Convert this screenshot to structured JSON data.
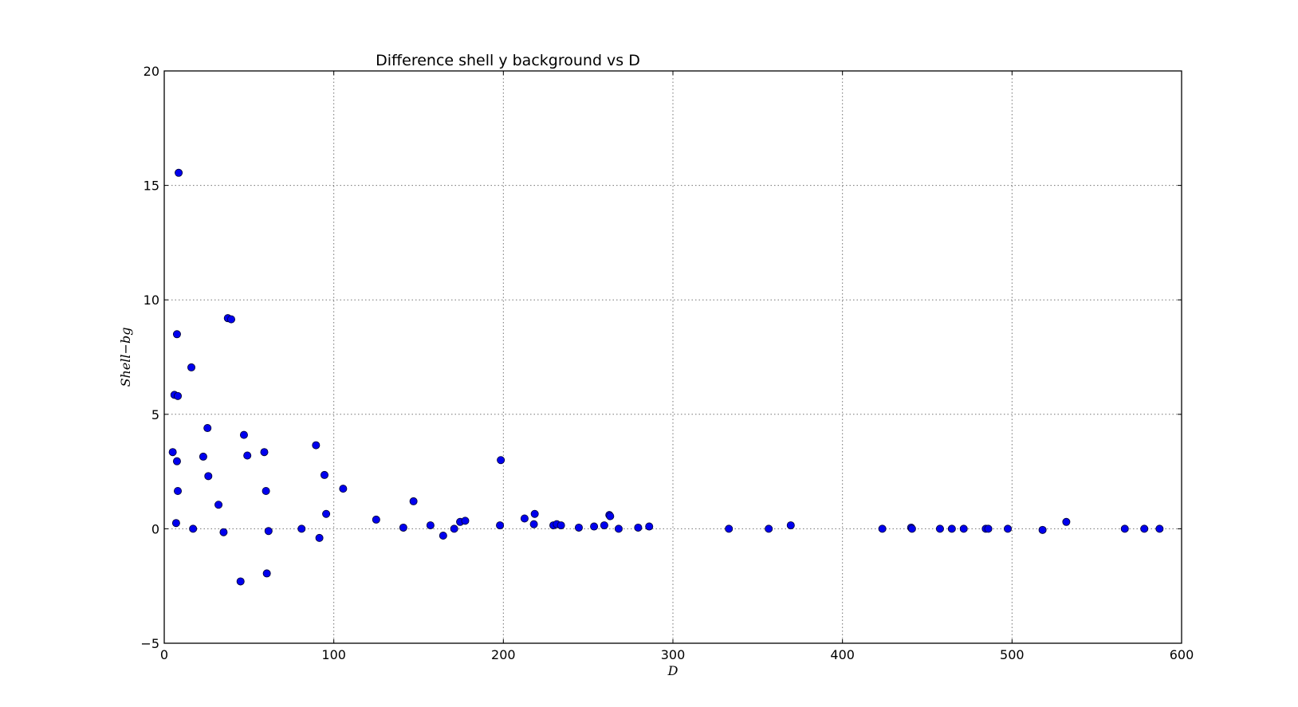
{
  "chart_data": {
    "type": "scatter",
    "title": "Difference shell  y   background vs D",
    "xlabel": "D",
    "ylabel": "Shell−bg",
    "xlim": [
      0,
      600
    ],
    "ylim": [
      -5,
      20
    ],
    "xticks": [
      0,
      100,
      200,
      300,
      400,
      500,
      600
    ],
    "yticks": [
      -5,
      0,
      5,
      10,
      15,
      20
    ],
    "grid": true,
    "marker_color": "#0000ee",
    "series": [
      {
        "points": [
          [
            5,
            3.35
          ],
          [
            6,
            5.85
          ],
          [
            7,
            0.25
          ],
          [
            7.5,
            2.95
          ],
          [
            7.5,
            8.5
          ],
          [
            8,
            5.8
          ],
          [
            8,
            1.65
          ],
          [
            8.5,
            15.55
          ],
          [
            16,
            7.05
          ],
          [
            17,
            0.0
          ],
          [
            23,
            3.15
          ],
          [
            25.5,
            4.4
          ],
          [
            26,
            2.3
          ],
          [
            32,
            1.05
          ],
          [
            35,
            -0.15
          ],
          [
            37.5,
            9.2
          ],
          [
            39.5,
            9.15
          ],
          [
            45,
            -2.3
          ],
          [
            47,
            4.1
          ],
          [
            49,
            3.2
          ],
          [
            59,
            3.35
          ],
          [
            60,
            1.65
          ],
          [
            60.5,
            -1.95
          ],
          [
            61.5,
            -0.1
          ],
          [
            81,
            0.0
          ],
          [
            89.5,
            3.65
          ],
          [
            91.5,
            -0.4
          ],
          [
            94.5,
            2.35
          ],
          [
            95.5,
            0.65
          ],
          [
            105.5,
            1.75
          ],
          [
            125,
            0.4
          ],
          [
            141,
            0.05
          ],
          [
            147,
            1.2
          ],
          [
            157,
            0.15
          ],
          [
            164.5,
            -0.3
          ],
          [
            171,
            0.0
          ],
          [
            174.5,
            0.3
          ],
          [
            177.5,
            0.35
          ],
          [
            198,
            0.15
          ],
          [
            198.5,
            3.0
          ],
          [
            212.5,
            0.45
          ],
          [
            218,
            0.2
          ],
          [
            218.5,
            0.65
          ],
          [
            229.5,
            0.15
          ],
          [
            231.5,
            0.2
          ],
          [
            234,
            0.15
          ],
          [
            244.5,
            0.05
          ],
          [
            253.5,
            0.1
          ],
          [
            259.5,
            0.15
          ],
          [
            262.5,
            0.6
          ],
          [
            263,
            0.55
          ],
          [
            268,
            0.0
          ],
          [
            279.5,
            0.05
          ],
          [
            286,
            0.1
          ],
          [
            333,
            0.0
          ],
          [
            356.5,
            0.0
          ],
          [
            369.5,
            0.15
          ],
          [
            423.5,
            0.0
          ],
          [
            440.5,
            0.05
          ],
          [
            441,
            0.0
          ],
          [
            457.5,
            0.0
          ],
          [
            464.5,
            0.0
          ],
          [
            471.5,
            0.0
          ],
          [
            484.5,
            0.0
          ],
          [
            486,
            0.0
          ],
          [
            497.5,
            0.0
          ],
          [
            518,
            -0.05
          ],
          [
            532,
            0.3
          ],
          [
            566.5,
            0.0
          ],
          [
            578,
            0.0
          ],
          [
            587,
            0.0
          ]
        ]
      }
    ]
  }
}
